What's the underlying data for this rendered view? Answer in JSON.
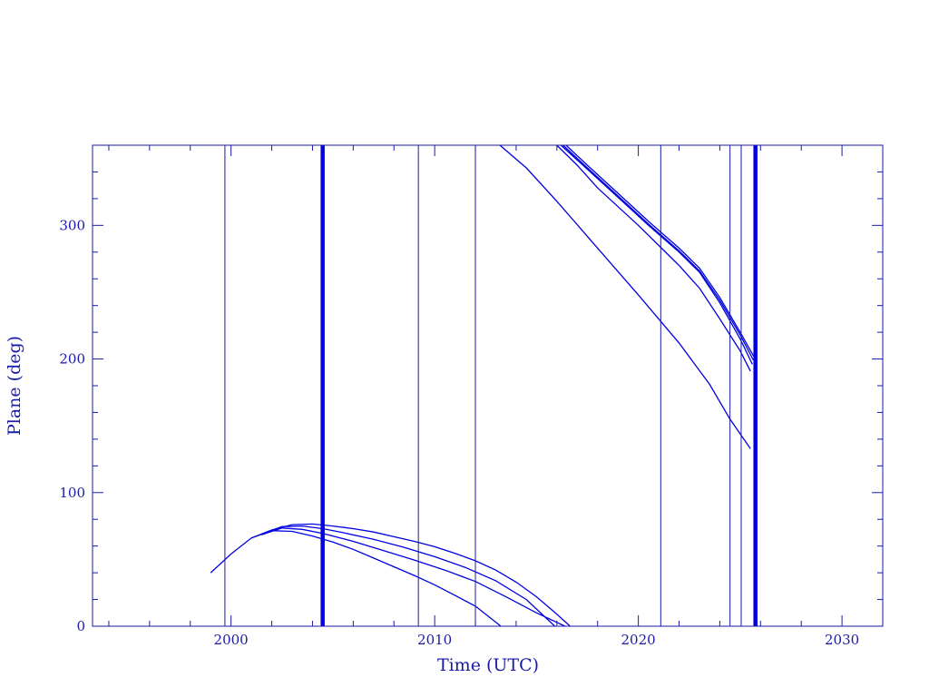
{
  "chart_data": {
    "type": "line",
    "title": "",
    "xlabel": "Time (UTC)",
    "ylabel": "Plane (deg)",
    "xlim": [
      1993.2,
      2032.0
    ],
    "ylim": [
      0,
      360
    ],
    "x_major_ticks": [
      2000,
      2010,
      2020,
      2030
    ],
    "x_tick_labels": [
      "2000",
      "2010",
      "2020",
      "2030"
    ],
    "x_minor_step": 2,
    "y_major_ticks": [
      0,
      100,
      200,
      300
    ],
    "y_tick_labels": [
      "0",
      "100",
      "200",
      "300"
    ],
    "y_minor_step": 20,
    "grid": false,
    "legend": "none",
    "colors": {
      "axis": "#1a1aa8",
      "data": "#0000e0"
    },
    "series": [
      {
        "x": [
          1999.0,
          2000.0,
          2001.0,
          2002.0,
          2003.0,
          2004.0,
          2005.0,
          2006.0,
          2007.0,
          2008.0,
          2009.0,
          2010.0,
          2011.0,
          2012.0,
          2013.0,
          2014.0,
          2015.0,
          2016.0,
          2016.65
        ],
        "y": [
          40,
          54,
          66,
          72,
          76,
          76.5,
          75,
          73,
          70.5,
          67,
          63.5,
          59.5,
          54.5,
          49,
          42,
          33,
          22,
          9,
          0
        ]
      },
      {
        "x": [
          2001.5,
          2002.5,
          2003.5,
          2004.5,
          2005.5,
          2007.0,
          2008.5,
          2010.0,
          2011.5,
          2013.0,
          2014.5,
          2015.9
        ],
        "y": [
          69,
          74.5,
          75,
          73,
          70,
          65,
          59,
          52,
          44,
          34,
          20,
          0
        ]
      },
      {
        "x": [
          2001.5,
          2002.5,
          2003.5,
          2004.5,
          2006.0,
          2007.5,
          2009.0,
          2010.5,
          2012.0,
          2013.5,
          2015.0,
          2016.4
        ],
        "y": [
          68.5,
          73.5,
          72.5,
          69.5,
          63.5,
          56.5,
          49.5,
          42,
          33.5,
          22,
          10,
          0
        ]
      },
      {
        "x": [
          2001.0,
          2002.0,
          2003.0,
          2004.0,
          2005.0,
          2006.0,
          2007.0,
          2008.0,
          2009.0,
          2010.0,
          2011.0,
          2012.0,
          2013.25
        ],
        "y": [
          66,
          71.5,
          71,
          67.5,
          63,
          57.5,
          51,
          44.5,
          38,
          31,
          23,
          15,
          0
        ]
      },
      {
        "x": [
          2013.2,
          2014.5,
          2016.0,
          2018.0,
          2020.0,
          2022.0,
          2023.5,
          2024.5,
          2025.5
        ],
        "y": [
          360,
          343,
          318,
          283,
          248,
          212,
          181,
          155,
          133
        ]
      },
      {
        "x": [
          2016.0,
          2017.0,
          2018.0,
          2019.0,
          2020.0,
          2021.0,
          2022.0,
          2023.0,
          2024.0,
          2025.0,
          2025.5
        ],
        "y": [
          360,
          345,
          328,
          314,
          300,
          285,
          270,
          253,
          230,
          206,
          191
        ]
      },
      {
        "x": [
          2016.2,
          2017.5,
          2019.0,
          2020.5,
          2022.0,
          2023.0,
          2024.0,
          2025.0,
          2025.6
        ],
        "y": [
          360,
          342,
          321,
          300,
          280,
          265,
          242,
          215,
          196
        ]
      },
      {
        "x": [
          2016.3,
          2017.5,
          2019.0,
          2020.5,
          2022.0,
          2023.0,
          2024.0,
          2025.0,
          2025.65
        ],
        "y": [
          360,
          343,
          322,
          301,
          281,
          266,
          244,
          218,
          199
        ]
      },
      {
        "x": [
          2016.45,
          2017.5,
          2019.0,
          2020.5,
          2022.0,
          2023.0,
          2024.0,
          2025.0,
          2025.7
        ],
        "y": [
          360,
          345,
          324,
          303,
          283,
          268,
          246,
          220,
          201
        ]
      }
    ],
    "vertical_lines": [
      {
        "x": 1999.7,
        "weight": "thin"
      },
      {
        "x": 2004.5,
        "weight": "thick"
      },
      {
        "x": 2009.2,
        "weight": "thin"
      },
      {
        "x": 2012.0,
        "weight": "thin"
      },
      {
        "x": 2021.1,
        "weight": "thin"
      },
      {
        "x": 2024.5,
        "weight": "thin"
      },
      {
        "x": 2025.05,
        "weight": "thin"
      },
      {
        "x": 2025.75,
        "weight": "thick"
      }
    ]
  }
}
